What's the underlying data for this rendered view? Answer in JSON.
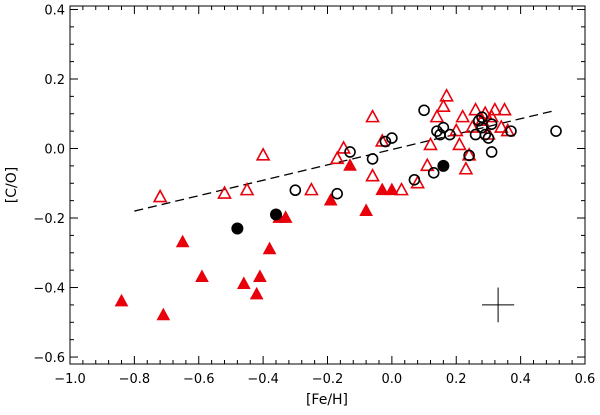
{
  "chart_data": {
    "type": "scatter",
    "title": "",
    "xlabel": "[Fe/H]",
    "ylabel": "[C/O]",
    "xlim": [
      -1.0,
      0.6
    ],
    "ylim": [
      -0.62,
      0.41
    ],
    "grid": false,
    "x_ticks": [
      -1.0,
      -0.8,
      -0.6,
      -0.4,
      -0.2,
      0.0,
      0.2,
      0.4,
      0.6
    ],
    "x_tick_labels": [
      "−1.0",
      "−0.8",
      "−0.6",
      "−0.4",
      "−0.2",
      "0.0",
      "0.2",
      "0.4",
      "0.6"
    ],
    "y_ticks": [
      -0.6,
      -0.4,
      -0.2,
      0.0,
      0.2,
      0.4
    ],
    "y_tick_labels": [
      "−0.6",
      "−0.4",
      "−0.2",
      "0.0",
      "0.2",
      "0.4"
    ],
    "colors": {
      "red": "#e8000b",
      "black": "#000000"
    },
    "series": [
      {
        "name": "red-filled-triangles",
        "marker": "triangle",
        "filled": true,
        "color": "#e8000b",
        "points": [
          [
            -0.84,
            -0.44
          ],
          [
            -0.71,
            -0.48
          ],
          [
            -0.65,
            -0.27
          ],
          [
            -0.59,
            -0.37
          ],
          [
            -0.46,
            -0.39
          ],
          [
            -0.42,
            -0.42
          ],
          [
            -0.41,
            -0.37
          ],
          [
            -0.38,
            -0.29
          ],
          [
            -0.35,
            -0.2
          ],
          [
            -0.33,
            -0.2
          ],
          [
            -0.19,
            -0.15
          ],
          [
            -0.13,
            -0.05
          ],
          [
            -0.08,
            -0.18
          ],
          [
            -0.03,
            -0.12
          ],
          [
            0.0,
            -0.12
          ]
        ]
      },
      {
        "name": "red-open-triangles",
        "marker": "triangle",
        "filled": false,
        "color": "#e8000b",
        "points": [
          [
            -0.72,
            -0.14
          ],
          [
            -0.52,
            -0.13
          ],
          [
            -0.45,
            -0.12
          ],
          [
            -0.4,
            -0.02
          ],
          [
            -0.25,
            -0.12
          ],
          [
            -0.17,
            -0.03
          ],
          [
            -0.15,
            0.0
          ],
          [
            -0.06,
            -0.08
          ],
          [
            -0.06,
            0.09
          ],
          [
            -0.03,
            0.02
          ],
          [
            0.03,
            -0.12
          ],
          [
            0.08,
            -0.1
          ],
          [
            0.11,
            -0.05
          ],
          [
            0.12,
            0.01
          ],
          [
            0.14,
            0.09
          ],
          [
            0.16,
            0.12
          ],
          [
            0.17,
            0.15
          ],
          [
            0.2,
            0.05
          ],
          [
            0.21,
            0.01
          ],
          [
            0.22,
            0.09
          ],
          [
            0.23,
            -0.06
          ],
          [
            0.24,
            -0.02
          ],
          [
            0.25,
            0.06
          ],
          [
            0.26,
            0.11
          ],
          [
            0.28,
            0.08
          ],
          [
            0.29,
            0.1
          ],
          [
            0.3,
            0.04
          ],
          [
            0.31,
            0.09
          ],
          [
            0.32,
            0.11
          ],
          [
            0.34,
            0.06
          ],
          [
            0.35,
            0.11
          ],
          [
            0.36,
            0.05
          ]
        ]
      },
      {
        "name": "black-open-circles",
        "marker": "circle",
        "filled": false,
        "color": "#000000",
        "points": [
          [
            -0.3,
            -0.12
          ],
          [
            -0.17,
            -0.13
          ],
          [
            -0.13,
            -0.01
          ],
          [
            -0.06,
            -0.03
          ],
          [
            -0.02,
            0.02
          ],
          [
            0.0,
            0.03
          ],
          [
            0.07,
            -0.09
          ],
          [
            0.1,
            0.11
          ],
          [
            0.13,
            -0.07
          ],
          [
            0.14,
            0.05
          ],
          [
            0.15,
            0.04
          ],
          [
            0.16,
            0.06
          ],
          [
            0.18,
            0.04
          ],
          [
            0.24,
            -0.02
          ],
          [
            0.26,
            0.04
          ],
          [
            0.27,
            0.08
          ],
          [
            0.28,
            0.06
          ],
          [
            0.28,
            0.09
          ],
          [
            0.29,
            0.04
          ],
          [
            0.3,
            0.03
          ],
          [
            0.31,
            -0.01
          ],
          [
            0.31,
            0.07
          ],
          [
            0.37,
            0.05
          ],
          [
            0.51,
            0.05
          ]
        ]
      },
      {
        "name": "black-filled-circles",
        "marker": "circle",
        "filled": true,
        "color": "#000000",
        "points": [
          [
            -0.48,
            -0.23
          ],
          [
            -0.36,
            -0.19
          ],
          [
            0.16,
            -0.05
          ]
        ]
      }
    ],
    "fit_line": {
      "style": "dashed",
      "color": "#000000",
      "x": [
        -0.8,
        0.51
      ],
      "y": [
        -0.18,
        0.11
      ]
    },
    "error_bar": {
      "x": 0.33,
      "y": -0.45,
      "xerr": 0.05,
      "yerr": 0.05
    }
  }
}
